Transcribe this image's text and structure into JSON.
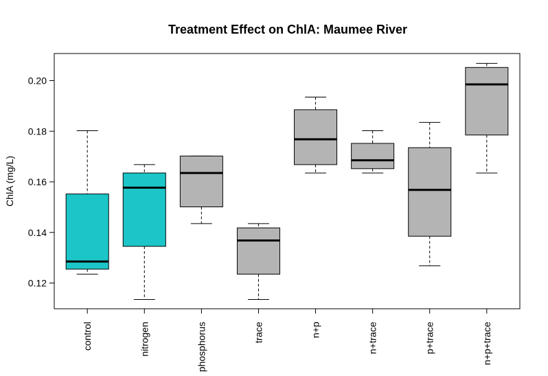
{
  "chart_data": {
    "type": "boxplot",
    "title": "Treatment Effect on ChlA: Maumee River",
    "xlabel": "",
    "ylabel": "ChlA (mg/L)",
    "ylim": [
      0.11,
      0.21
    ],
    "yticks": [
      0.12,
      0.14,
      0.16,
      0.18,
      0.2
    ],
    "ytick_labels": [
      "0.12",
      "0.14",
      "0.16",
      "0.18",
      "0.20"
    ],
    "grid": false,
    "categories": [
      "control",
      "nitrogen",
      "phosphorus",
      "trace",
      "n+p",
      "n+trace",
      "p+trace",
      "n+p+trace"
    ],
    "boxes": [
      {
        "min": 0.1235,
        "q1": 0.1255,
        "median": 0.1285,
        "q3": 0.1552,
        "max": 0.1802,
        "color": "#1cc6c8"
      },
      {
        "min": 0.1135,
        "q1": 0.1345,
        "median": 0.1577,
        "q3": 0.1635,
        "max": 0.1668,
        "color": "#1cc6c8"
      },
      {
        "min": 0.1435,
        "q1": 0.1501,
        "median": 0.1635,
        "q3": 0.1702,
        "max": 0.1702,
        "color": "#b4b4b4"
      },
      {
        "min": 0.1135,
        "q1": 0.1235,
        "median": 0.1368,
        "q3": 0.1418,
        "max": 0.1435,
        "color": "#b4b4b4"
      },
      {
        "min": 0.1635,
        "q1": 0.1668,
        "median": 0.1768,
        "q3": 0.1885,
        "max": 0.1935,
        "color": "#b4b4b4"
      },
      {
        "min": 0.1635,
        "q1": 0.1652,
        "median": 0.1685,
        "q3": 0.1752,
        "max": 0.1802,
        "color": "#b4b4b4"
      },
      {
        "min": 0.1268,
        "q1": 0.1385,
        "median": 0.1568,
        "q3": 0.1735,
        "max": 0.1835,
        "color": "#b4b4b4"
      },
      {
        "min": 0.1635,
        "q1": 0.1785,
        "median": 0.1985,
        "q3": 0.2052,
        "max": 0.2068,
        "color": "#b4b4b4"
      }
    ]
  }
}
